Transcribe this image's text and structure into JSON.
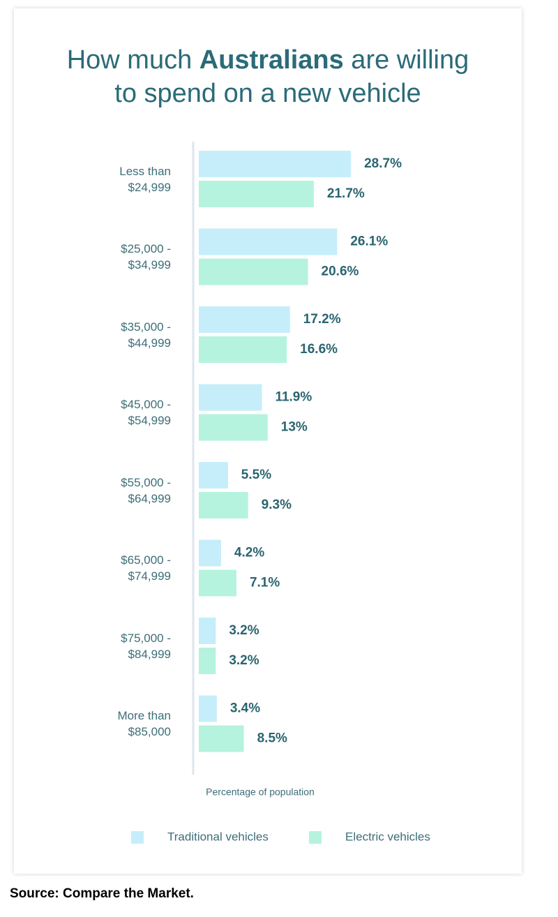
{
  "chart_data": {
    "type": "bar",
    "orientation": "horizontal",
    "title": [
      "How much ",
      "Australians",
      " are willing to spend on a new vehicle"
    ],
    "x_label": "Percentage of population",
    "categories": [
      "Less than $24,999",
      "$25,000 - $34,999",
      "$35,000 - $44,999",
      "$45,000 - $54,999",
      "$55,000 - $64,999",
      "$65,000 - $74,999",
      "$75,000 - $84,999",
      "More than $85,000"
    ],
    "series": [
      {
        "name": "Traditional vehicles",
        "color": "#c5eefa",
        "values": [
          28.7,
          26.1,
          17.2,
          11.9,
          5.5,
          4.2,
          3.2,
          3.4
        ],
        "value_labels": [
          "28.7%",
          "26.1%",
          "17.2%",
          "11.9%",
          "5.5%",
          "4.2%",
          "3.2%",
          "3.4%"
        ]
      },
      {
        "name": "Electric vehicles",
        "color": "#b5f3de",
        "values": [
          21.7,
          20.6,
          16.6,
          13,
          9.3,
          7.1,
          3.2,
          8.5
        ],
        "value_labels": [
          "21.7%",
          "20.6%",
          "16.6%",
          "13%",
          "9.3%",
          "7.1%",
          "3.2%",
          "8.5%"
        ]
      }
    ],
    "legend": "bottom",
    "source": "Source: Compare the Market."
  }
}
